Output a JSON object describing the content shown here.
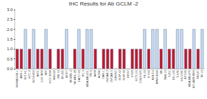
{
  "chart_data": {
    "type": "bar",
    "title": "IHC Results for Ab GCLM -2",
    "categories": [
      "NS/NB/LHE-1",
      "ADH-1",
      "NCI-H1",
      "HCC-2",
      "NCI-H460",
      "A431",
      "LOX IMVI",
      "SKT",
      "HCC-2998",
      "SW-620",
      "KM-12",
      "SF-295",
      "MCF7",
      "SK-MEL-2",
      "SK-MEL-28",
      "UACC-62",
      "PC-3",
      "MDA-MB-231",
      "786-0",
      "A498",
      "ACHN",
      "CAKI-1",
      "OVCAR-3",
      "OVCAR-5",
      "IGROV1",
      "HOP-62",
      "HOP-92",
      "EKVX",
      "HT29",
      "HCT-116",
      "COLO 205",
      "HL-60",
      "K-562",
      "MOLT-4",
      "RPMI-8226",
      "SR",
      "SNB-19",
      "U251",
      "DU-145",
      "T-47D",
      "HS 578T",
      "BT-549",
      "MDA-MB-435",
      "NCI-ADR-RES",
      "SN12C",
      "TK-10"
    ],
    "values": [
      1,
      1,
      2,
      1,
      2,
      1,
      1,
      2,
      1,
      0,
      1,
      1,
      2,
      0,
      1,
      2,
      1,
      2,
      2,
      1,
      0,
      1,
      1,
      1,
      0,
      1,
      1,
      0,
      1,
      1,
      1,
      2,
      1,
      2,
      2,
      1,
      2,
      1,
      1,
      2,
      2,
      1,
      1,
      2,
      1,
      2
    ],
    "colors": [
      "#c0182e",
      "#c0182e",
      "#c6d9f0",
      "#c0182e",
      "#c6d9f0",
      "#c0182e",
      "#c0182e",
      "#c6d9f0",
      "#c0182e",
      "#c0182e",
      "#c0182e",
      "#c0182e",
      "#c6d9f0",
      "#c0182e",
      "#c0182e",
      "#c6d9f0",
      "#c0182e",
      "#c6d9f0",
      "#c6d9f0",
      "#c0182e",
      "#c0182e",
      "#c0182e",
      "#c0182e",
      "#c0182e",
      "#c0182e",
      "#c0182e",
      "#c0182e",
      "#c0182e",
      "#c0182e",
      "#c0182e",
      "#c0182e",
      "#c6d9f0",
      "#c0182e",
      "#c6d9f0",
      "#c6d9f0",
      "#c0182e",
      "#c6d9f0",
      "#c0182e",
      "#c0182e",
      "#c6d9f0",
      "#c6d9f0",
      "#c0182e",
      "#c0182e",
      "#c6d9f0",
      "#c0182e",
      "#c6d9f0"
    ],
    "ylim": [
      0,
      3
    ],
    "yticks": [
      {
        "value": 0,
        "label": "0.0"
      },
      {
        "value": 0.5,
        "label": "0.5"
      },
      {
        "value": 1,
        "label": "1.0"
      },
      {
        "value": 1.5,
        "label": "1.5"
      },
      {
        "value": 2,
        "label": "2.0"
      },
      {
        "value": 2.5,
        "label": "2.5"
      },
      {
        "value": 3,
        "label": "3.0"
      }
    ],
    "grid": false
  }
}
